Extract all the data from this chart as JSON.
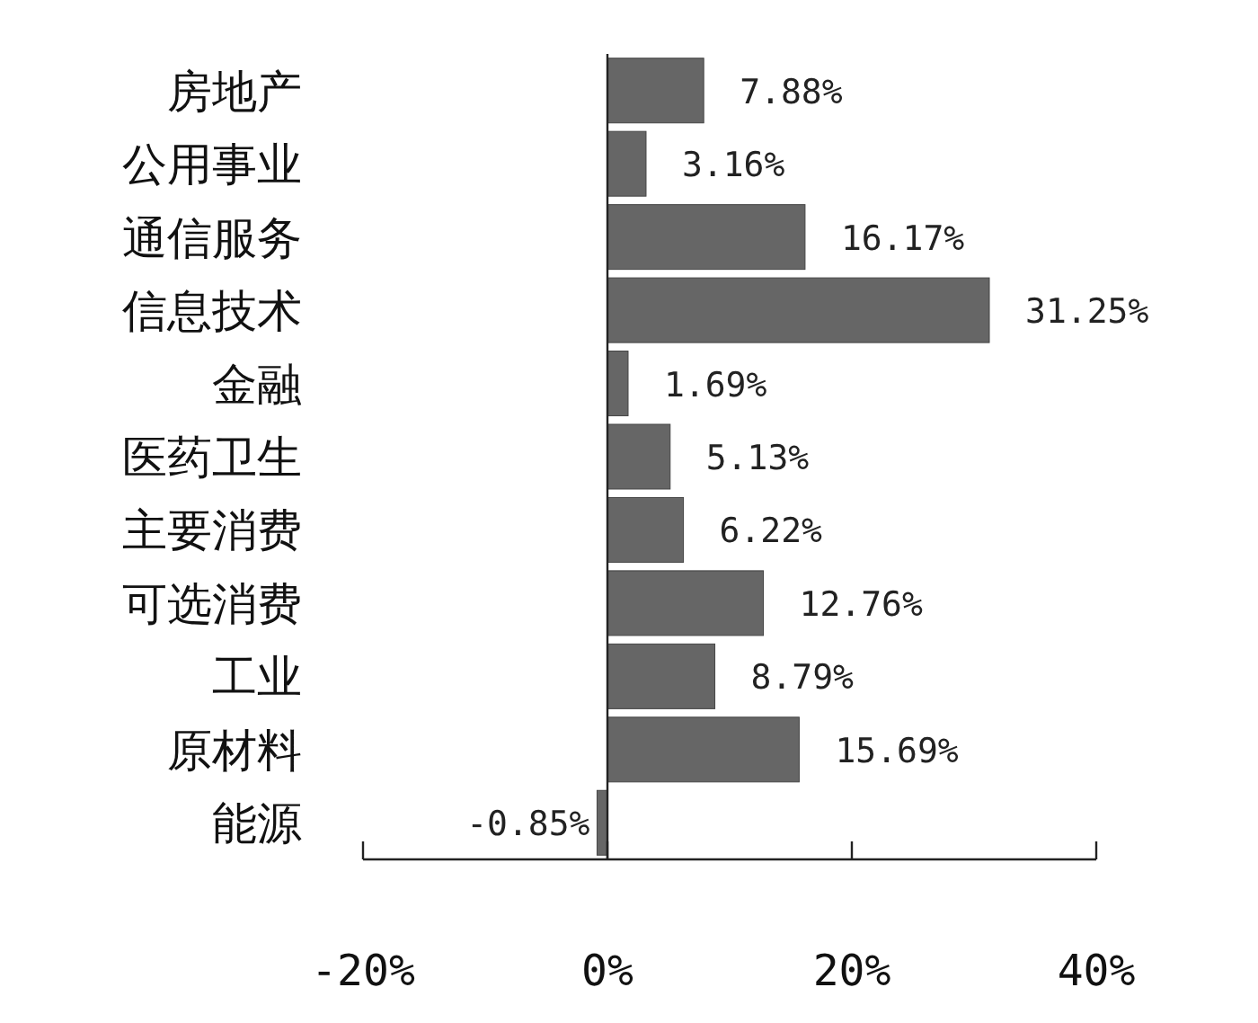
{
  "chart_data": {
    "type": "bar",
    "orientation": "horizontal",
    "color": "#666666",
    "categories": [
      "房地产",
      "公用事业",
      "通信服务",
      "信息技术",
      "金融",
      "医药卫生",
      "主要消费",
      "可选消费",
      "工业",
      "原材料",
      "能源"
    ],
    "values": [
      7.88,
      3.16,
      16.17,
      31.25,
      1.69,
      5.13,
      6.22,
      12.76,
      8.79,
      15.69,
      -0.85
    ],
    "value_labels": [
      "7.88%",
      "3.16%",
      "16.17%",
      "31.25%",
      "1.69%",
      "5.13%",
      "6.22%",
      "12.76%",
      "8.79%",
      "15.69%",
      "-0.85%"
    ],
    "xlim": [
      -20,
      40
    ],
    "xticks": [
      {
        "value": -20,
        "label": "-20%"
      },
      {
        "value": 0,
        "label": "0%"
      },
      {
        "value": 20,
        "label": "20%"
      },
      {
        "value": 40,
        "label": "40%"
      }
    ]
  }
}
